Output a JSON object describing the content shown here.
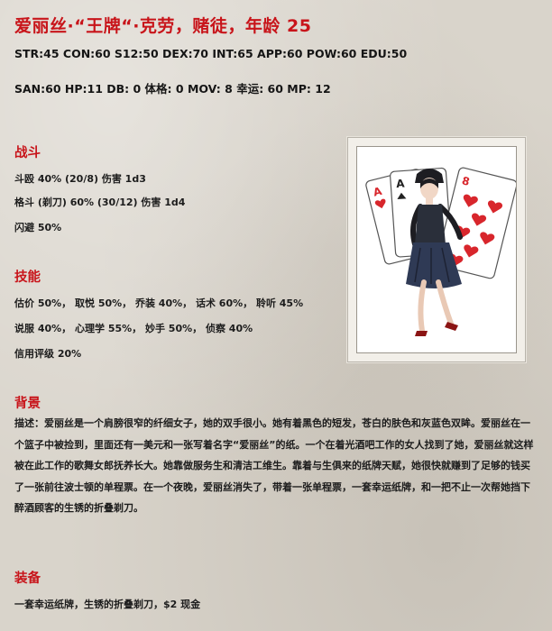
{
  "header": {
    "title": "爱丽丝·“王牌“·克劳，赌徒，年龄 25",
    "stats_line1": "STR:45 CON:60 S12:50 DEX:70 INT:65 APP:60 POW:60 EDU:50",
    "stats_line2": "SAN:60 HP:11 DB: 0  体格: 0 MOV: 8  幸运: 60 MP: 12"
  },
  "combat": {
    "heading": "战斗",
    "lines": [
      "斗殴 40% (20/8) 伤害 1d3",
      "格斗 (剃刀) 60% (30/12) 伤害 1d4",
      "闪避 50%"
    ]
  },
  "skills": {
    "heading": "技能",
    "lines": [
      "估价 50%， 取悦 50%， 乔装 40%， 话术 60%， 聆听 45%",
      "说服 40%， 心理学 55%， 妙手 50%， 侦察 40%",
      "信用评级 20%"
    ]
  },
  "background": {
    "heading": "背景",
    "text": "描述：爱丽丝是一个肩膀很窄的纤细女子，她的双手很小。她有着黑色的短发，苍白的肤色和灰蓝色双眸。爱丽丝在一个篮子中被捡到，里面还有一美元和一张写着名字“爱丽丝”的纸。一个在着光酒吧工作的女人找到了她，爱丽丝就这样被在此工作的歌舞女郎抚养长大。她靠做服务生和清洁工维生。靠着与生俱来的纸牌天赋，她很快就赚到了足够的钱买了一张前往波士顿的单程票。在一个夜晚，爱丽丝消失了，带着一张单程票，一套幸运纸牌，和一把不止一次帮她挡下醉酒顾客的生锈的折叠剃刀。"
  },
  "equipment": {
    "heading": "装备",
    "text": "一套幸运纸牌，生锈的折叠剃刀，$2 现金"
  },
  "colors": {
    "heading_red": "#c8141a",
    "paper": "#d9d4cb",
    "card_red": "#d8262c"
  },
  "portrait": {
    "card_corner_1": "A",
    "card_corner_2": "A",
    "card_corner_3": "8"
  }
}
